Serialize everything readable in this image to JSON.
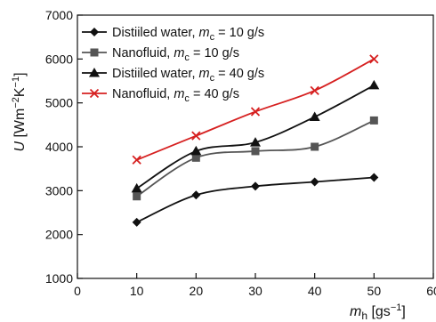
{
  "chart_data": {
    "type": "line",
    "x": [
      10,
      20,
      30,
      40,
      50
    ],
    "xlim": [
      0,
      60
    ],
    "ylim": [
      1000,
      7000
    ],
    "xticks": [
      "0",
      "10",
      "20",
      "30",
      "40",
      "50",
      "60"
    ],
    "yticks": [
      "1000",
      "2000",
      "3000",
      "4000",
      "5000",
      "6000",
      "7000"
    ],
    "xlabel": {
      "main": "m",
      "sub": "h",
      "units": "[gs",
      "sup": "−1",
      "close": "]"
    },
    "ylabel": {
      "main": "U",
      "units": "[Wm",
      "sup1": "−2",
      "mid": "K",
      "sup2": "−1",
      "close": "]"
    },
    "grid": false,
    "legend_position": "top-left",
    "series": [
      {
        "label_text": "Distiiled water, ",
        "label_var": "m",
        "label_sub": "c",
        "label_value": " = 10 g/s",
        "marker": "diamond",
        "color": "#111111",
        "values": [
          2280,
          2900,
          3100,
          3200,
          3300
        ]
      },
      {
        "label_text": "Nanofluid, ",
        "label_var": "m",
        "label_sub": "c",
        "label_value": " = 10 g/s",
        "marker": "square",
        "color": "#555555",
        "values": [
          2870,
          3750,
          3900,
          4000,
          4600
        ]
      },
      {
        "label_text": "Distiiled water, ",
        "label_var": "m",
        "label_sub": "c",
        "label_value": " = 40 g/s",
        "marker": "triangle",
        "color": "#111111",
        "values": [
          3050,
          3900,
          4100,
          4680,
          5400
        ]
      },
      {
        "label_text": "Nanofluid, ",
        "label_var": "m",
        "label_sub": "c",
        "label_value": " = 40 g/s",
        "marker": "x",
        "color": "#d62020",
        "values": [
          3700,
          4250,
          4800,
          5280,
          6000
        ]
      }
    ]
  }
}
